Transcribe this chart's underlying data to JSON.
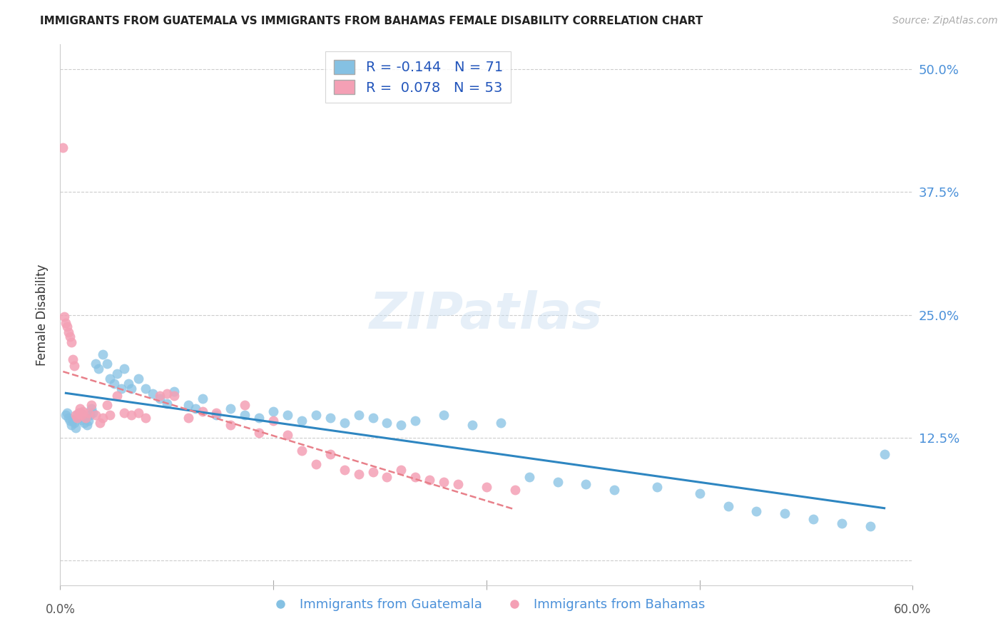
{
  "title": "IMMIGRANTS FROM GUATEMALA VS IMMIGRANTS FROM BAHAMAS FEMALE DISABILITY CORRELATION CHART",
  "source": "Source: ZipAtlas.com",
  "ylabel": "Female Disability",
  "yticks": [
    0.0,
    0.125,
    0.25,
    0.375,
    0.5
  ],
  "ytick_labels": [
    "",
    "12.5%",
    "25.0%",
    "37.5%",
    "50.0%"
  ],
  "xlim": [
    0.0,
    0.6
  ],
  "ylim": [
    -0.025,
    0.525
  ],
  "legend_R_blue": "-0.144",
  "legend_N_blue": "71",
  "legend_R_pink": "0.078",
  "legend_N_pink": "53",
  "color_blue": "#85c1e3",
  "color_pink": "#f4a0b5",
  "color_blue_line": "#2e86c1",
  "color_pink_line": "#e8808a",
  "watermark_text": "ZIPatlas",
  "guatemala_x": [
    0.004,
    0.005,
    0.006,
    0.007,
    0.008,
    0.009,
    0.01,
    0.011,
    0.012,
    0.013,
    0.014,
    0.015,
    0.016,
    0.017,
    0.018,
    0.019,
    0.02,
    0.021,
    0.022,
    0.023,
    0.025,
    0.027,
    0.03,
    0.033,
    0.035,
    0.038,
    0.04,
    0.043,
    0.045,
    0.048,
    0.05,
    0.055,
    0.06,
    0.065,
    0.07,
    0.075,
    0.08,
    0.09,
    0.095,
    0.1,
    0.11,
    0.12,
    0.13,
    0.14,
    0.15,
    0.16,
    0.17,
    0.18,
    0.19,
    0.2,
    0.21,
    0.22,
    0.23,
    0.24,
    0.25,
    0.27,
    0.29,
    0.31,
    0.33,
    0.35,
    0.37,
    0.39,
    0.42,
    0.45,
    0.47,
    0.49,
    0.51,
    0.53,
    0.55,
    0.57,
    0.58
  ],
  "guatemala_y": [
    0.148,
    0.15,
    0.145,
    0.142,
    0.138,
    0.143,
    0.14,
    0.135,
    0.148,
    0.145,
    0.15,
    0.143,
    0.148,
    0.14,
    0.145,
    0.138,
    0.142,
    0.148,
    0.155,
    0.15,
    0.2,
    0.195,
    0.21,
    0.2,
    0.185,
    0.18,
    0.19,
    0.175,
    0.195,
    0.18,
    0.175,
    0.185,
    0.175,
    0.17,
    0.165,
    0.16,
    0.172,
    0.158,
    0.155,
    0.165,
    0.148,
    0.155,
    0.148,
    0.145,
    0.152,
    0.148,
    0.142,
    0.148,
    0.145,
    0.14,
    0.148,
    0.145,
    0.14,
    0.138,
    0.142,
    0.148,
    0.138,
    0.14,
    0.085,
    0.08,
    0.078,
    0.072,
    0.075,
    0.068,
    0.055,
    0.05,
    0.048,
    0.042,
    0.038,
    0.035,
    0.108
  ],
  "bahamas_x": [
    0.002,
    0.003,
    0.004,
    0.005,
    0.006,
    0.007,
    0.008,
    0.009,
    0.01,
    0.011,
    0.012,
    0.013,
    0.014,
    0.015,
    0.016,
    0.018,
    0.02,
    0.022,
    0.025,
    0.028,
    0.03,
    0.033,
    0.035,
    0.04,
    0.045,
    0.05,
    0.055,
    0.06,
    0.07,
    0.075,
    0.08,
    0.09,
    0.1,
    0.11,
    0.12,
    0.13,
    0.14,
    0.15,
    0.16,
    0.17,
    0.18,
    0.19,
    0.2,
    0.21,
    0.22,
    0.23,
    0.24,
    0.25,
    0.26,
    0.27,
    0.28,
    0.3,
    0.32
  ],
  "bahamas_y": [
    0.42,
    0.248,
    0.242,
    0.238,
    0.232,
    0.228,
    0.222,
    0.205,
    0.198,
    0.148,
    0.145,
    0.15,
    0.155,
    0.148,
    0.152,
    0.145,
    0.15,
    0.158,
    0.148,
    0.14,
    0.145,
    0.158,
    0.148,
    0.168,
    0.15,
    0.148,
    0.15,
    0.145,
    0.168,
    0.17,
    0.168,
    0.145,
    0.152,
    0.15,
    0.138,
    0.158,
    0.13,
    0.142,
    0.128,
    0.112,
    0.098,
    0.108,
    0.092,
    0.088,
    0.09,
    0.085,
    0.092,
    0.085,
    0.082,
    0.08,
    0.078,
    0.075,
    0.072
  ]
}
